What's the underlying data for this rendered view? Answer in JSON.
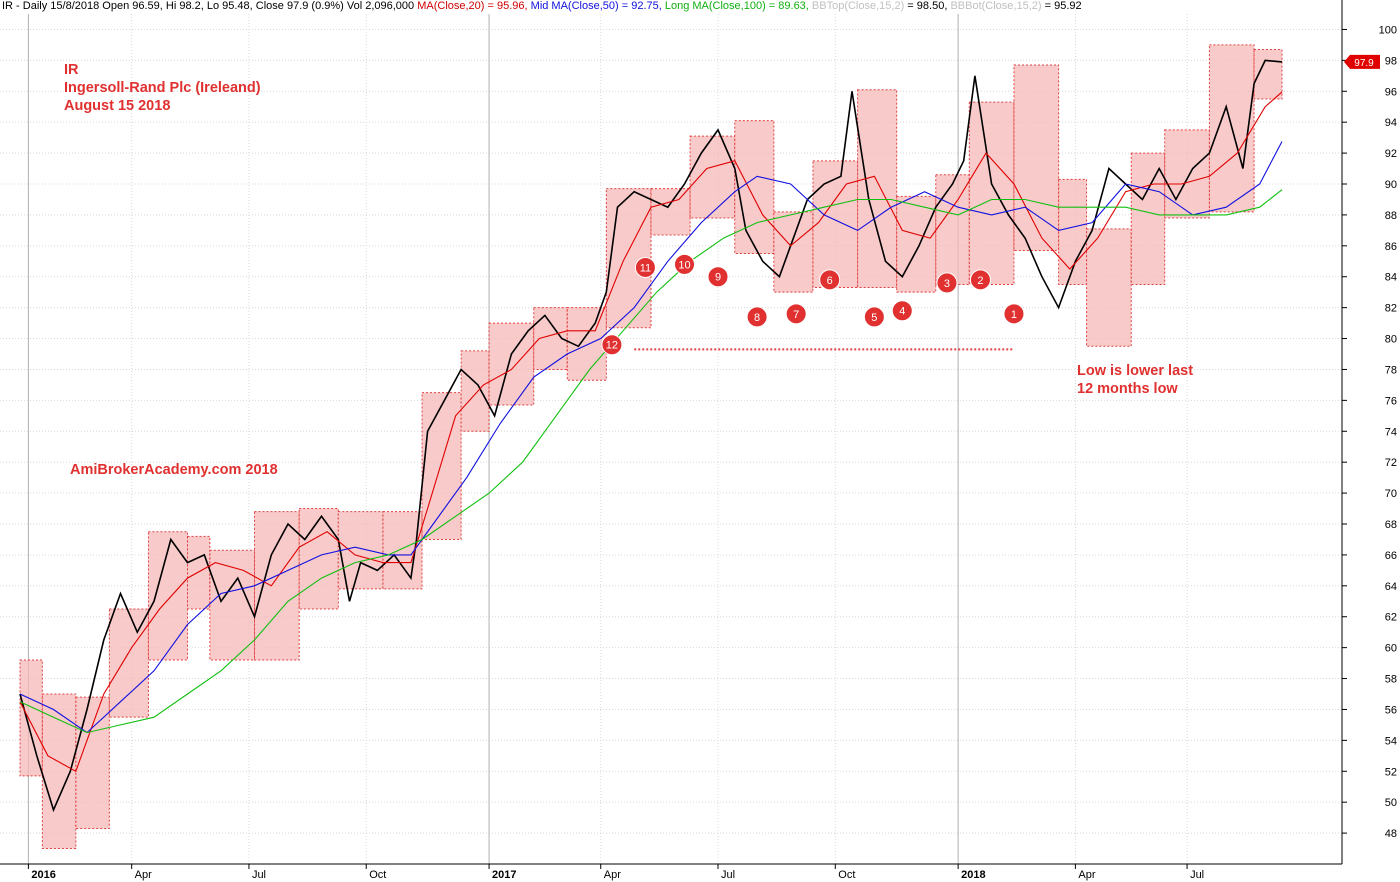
{
  "header": {
    "prefix": "IR - Daily 15/8/2018 Open 96.59, Hi 98.2, Lo 95.48, Close 97.9 (0.9%) Vol 2,096,000 ",
    "ma20": "MA(Close,20) = 95.96,",
    "ma50": " Mid MA(Close,50) = 92.75,",
    "ma100": " Long MA(Close,100) = 89.63,",
    "bbtop_label": " BBTop(Close,15,2)",
    "bbtop_value": " = 98.50, ",
    "bbbot_label": "BBBot(Close,15,2)",
    "bbbot_value": " = 95.92"
  },
  "annotations": {
    "symbol": "IR",
    "company": "Ingersoll-Rand Plc (Ireleand)",
    "date": "August 15 2018",
    "watermark": "AmiBrokerAcademy.com  2018",
    "low_note_line1": "Low is lower last",
    "low_note_line2": "12 months low"
  },
  "chart_data": {
    "type": "line",
    "title": "IR - Daily 15/8/2018",
    "x_tick_labels": [
      "2016",
      "Apr",
      "Jul",
      "Oct",
      "2017",
      "Apr",
      "Jul",
      "Oct",
      "2018",
      "Apr",
      "Jul"
    ],
    "y_range": [
      46,
      101
    ],
    "y_ticks": [
      48,
      50,
      52,
      54,
      56,
      58,
      60,
      62,
      64,
      66,
      68,
      70,
      72,
      74,
      76,
      78,
      80,
      82,
      84,
      86,
      88,
      90,
      92,
      94,
      96,
      98,
      100
    ],
    "last_price_label": "97.9",
    "grid": true,
    "series": [
      {
        "name": "Close",
        "color": "#000000",
        "points": [
          [
            0,
            57
          ],
          [
            0.3,
            53
          ],
          [
            0.6,
            49.5
          ],
          [
            0.9,
            52
          ],
          [
            1.2,
            56
          ],
          [
            1.5,
            60.5
          ],
          [
            1.8,
            63.5
          ],
          [
            2.1,
            61
          ],
          [
            2.4,
            63
          ],
          [
            2.7,
            67
          ],
          [
            3.0,
            65.5
          ],
          [
            3.3,
            66
          ],
          [
            3.6,
            63
          ],
          [
            3.9,
            64.5
          ],
          [
            4.2,
            62
          ],
          [
            4.5,
            66
          ],
          [
            4.8,
            68
          ],
          [
            5.1,
            67
          ],
          [
            5.4,
            68.5
          ],
          [
            5.7,
            67
          ],
          [
            5.9,
            63
          ],
          [
            6.1,
            65.5
          ],
          [
            6.4,
            65
          ],
          [
            6.7,
            66
          ],
          [
            7.0,
            64.5
          ],
          [
            7.1,
            67
          ],
          [
            7.3,
            74
          ],
          [
            7.6,
            76
          ],
          [
            7.9,
            78
          ],
          [
            8.2,
            77
          ],
          [
            8.5,
            75
          ],
          [
            8.8,
            79
          ],
          [
            9.1,
            80.5
          ],
          [
            9.4,
            81.5
          ],
          [
            9.7,
            80
          ],
          [
            10.0,
            79.5
          ],
          [
            10.3,
            81
          ],
          [
            10.5,
            83
          ],
          [
            10.7,
            88.5
          ],
          [
            11.0,
            89.5
          ],
          [
            11.3,
            89
          ],
          [
            11.6,
            88.5
          ],
          [
            11.9,
            90
          ],
          [
            12.2,
            92
          ],
          [
            12.5,
            93.5
          ],
          [
            12.8,
            91
          ],
          [
            13.0,
            87
          ],
          [
            13.3,
            85
          ],
          [
            13.6,
            84
          ],
          [
            13.8,
            86
          ],
          [
            14.1,
            89
          ],
          [
            14.4,
            90
          ],
          [
            14.7,
            90.5
          ],
          [
            14.9,
            96
          ],
          [
            15.2,
            89
          ],
          [
            15.5,
            85
          ],
          [
            15.8,
            84
          ],
          [
            16.1,
            86
          ],
          [
            16.4,
            88.5
          ],
          [
            16.7,
            90
          ],
          [
            16.9,
            91.5
          ],
          [
            17.1,
            97
          ],
          [
            17.4,
            90
          ],
          [
            17.7,
            88
          ],
          [
            18.0,
            86.5
          ],
          [
            18.3,
            84
          ],
          [
            18.6,
            82
          ],
          [
            18.9,
            85
          ],
          [
            19.2,
            87
          ],
          [
            19.5,
            91
          ],
          [
            19.8,
            90
          ],
          [
            20.1,
            89
          ],
          [
            20.4,
            91
          ],
          [
            20.7,
            89
          ],
          [
            21.0,
            91
          ],
          [
            21.3,
            92
          ],
          [
            21.6,
            95
          ],
          [
            21.9,
            91
          ],
          [
            22.1,
            96.5
          ],
          [
            22.3,
            98
          ],
          [
            22.6,
            97.9
          ]
        ]
      },
      {
        "name": "MA(Close,20)",
        "color": "#e00000",
        "points": [
          [
            0,
            56.5
          ],
          [
            0.5,
            53
          ],
          [
            1.0,
            52
          ],
          [
            1.5,
            57
          ],
          [
            2.0,
            60
          ],
          [
            2.5,
            62.5
          ],
          [
            3.0,
            64.5
          ],
          [
            3.5,
            65.5
          ],
          [
            4.0,
            65
          ],
          [
            4.5,
            64
          ],
          [
            5.0,
            66.5
          ],
          [
            5.5,
            67.5
          ],
          [
            6.0,
            66
          ],
          [
            6.5,
            65.5
          ],
          [
            7.0,
            65.5
          ],
          [
            7.3,
            69
          ],
          [
            7.8,
            75
          ],
          [
            8.3,
            77
          ],
          [
            8.8,
            78
          ],
          [
            9.3,
            80
          ],
          [
            9.8,
            80.5
          ],
          [
            10.3,
            80.5
          ],
          [
            10.8,
            85
          ],
          [
            11.3,
            88.5
          ],
          [
            11.8,
            89
          ],
          [
            12.3,
            91
          ],
          [
            12.8,
            91.5
          ],
          [
            13.3,
            88
          ],
          [
            13.8,
            86
          ],
          [
            14.3,
            87.5
          ],
          [
            14.8,
            90
          ],
          [
            15.3,
            90.5
          ],
          [
            15.8,
            87
          ],
          [
            16.3,
            86.5
          ],
          [
            16.8,
            89
          ],
          [
            17.3,
            92
          ],
          [
            17.8,
            90
          ],
          [
            18.3,
            86.5
          ],
          [
            18.8,
            84.5
          ],
          [
            19.3,
            86.5
          ],
          [
            19.8,
            89.5
          ],
          [
            20.3,
            90
          ],
          [
            20.8,
            90
          ],
          [
            21.3,
            90.5
          ],
          [
            21.8,
            92
          ],
          [
            22.3,
            95
          ],
          [
            22.6,
            95.96
          ]
        ]
      },
      {
        "name": "MA(Close,50)",
        "color": "#1010e0",
        "points": [
          [
            0,
            57
          ],
          [
            0.6,
            56
          ],
          [
            1.2,
            54.5
          ],
          [
            1.8,
            56.5
          ],
          [
            2.4,
            58.5
          ],
          [
            3.0,
            61.5
          ],
          [
            3.6,
            63.5
          ],
          [
            4.2,
            64
          ],
          [
            4.8,
            65
          ],
          [
            5.4,
            66
          ],
          [
            6.0,
            66.5
          ],
          [
            6.6,
            66
          ],
          [
            7.0,
            66
          ],
          [
            7.4,
            68
          ],
          [
            8.0,
            71
          ],
          [
            8.6,
            74.5
          ],
          [
            9.2,
            77.5
          ],
          [
            9.8,
            79
          ],
          [
            10.4,
            80
          ],
          [
            11.0,
            82
          ],
          [
            11.6,
            85
          ],
          [
            12.2,
            87.5
          ],
          [
            12.8,
            89.5
          ],
          [
            13.2,
            90.5
          ],
          [
            13.8,
            90
          ],
          [
            14.4,
            88
          ],
          [
            15.0,
            87
          ],
          [
            15.6,
            88.5
          ],
          [
            16.2,
            89.5
          ],
          [
            16.8,
            88.5
          ],
          [
            17.4,
            88
          ],
          [
            18.0,
            88.5
          ],
          [
            18.6,
            87
          ],
          [
            19.2,
            87.5
          ],
          [
            19.8,
            90
          ],
          [
            20.4,
            89.5
          ],
          [
            21.0,
            88
          ],
          [
            21.6,
            88.5
          ],
          [
            22.2,
            90
          ],
          [
            22.6,
            92.75
          ]
        ]
      },
      {
        "name": "MA(Close,100)",
        "color": "#10c010",
        "points": [
          [
            0,
            56.5
          ],
          [
            0.6,
            55.5
          ],
          [
            1.2,
            54.5
          ],
          [
            1.8,
            55
          ],
          [
            2.4,
            55.5
          ],
          [
            3.0,
            57
          ],
          [
            3.6,
            58.5
          ],
          [
            4.2,
            60.5
          ],
          [
            4.8,
            63
          ],
          [
            5.4,
            64.5
          ],
          [
            6.0,
            65.5
          ],
          [
            6.6,
            66
          ],
          [
            7.2,
            67
          ],
          [
            7.8,
            68.5
          ],
          [
            8.4,
            70
          ],
          [
            9.0,
            72
          ],
          [
            9.6,
            75
          ],
          [
            10.2,
            78
          ],
          [
            10.8,
            80.5
          ],
          [
            11.4,
            83
          ],
          [
            12.0,
            85
          ],
          [
            12.6,
            86.5
          ],
          [
            13.2,
            87.5
          ],
          [
            13.8,
            88
          ],
          [
            14.4,
            88.5
          ],
          [
            15.0,
            89
          ],
          [
            15.6,
            89
          ],
          [
            16.2,
            88.5
          ],
          [
            16.8,
            88
          ],
          [
            17.4,
            89
          ],
          [
            18.0,
            89
          ],
          [
            18.6,
            88.5
          ],
          [
            19.2,
            88.5
          ],
          [
            19.8,
            88.5
          ],
          [
            20.4,
            88
          ],
          [
            21.0,
            88
          ],
          [
            21.6,
            88
          ],
          [
            22.2,
            88.5
          ],
          [
            22.6,
            89.63
          ]
        ]
      }
    ],
    "monthly_boxes": [
      {
        "x0": 0,
        "x1": 0.4,
        "low": 51.7,
        "high": 59.2
      },
      {
        "x0": 0.4,
        "x1": 1.0,
        "low": 47.0,
        "high": 57.0
      },
      {
        "x0": 1.0,
        "x1": 1.6,
        "low": 48.3,
        "high": 56.8
      },
      {
        "x0": 1.6,
        "x1": 2.3,
        "low": 55.5,
        "high": 62.5
      },
      {
        "x0": 2.3,
        "x1": 3.0,
        "low": 59.2,
        "high": 67.5
      },
      {
        "x0": 3.0,
        "x1": 3.4,
        "low": 62.5,
        "high": 67.2
      },
      {
        "x0": 3.4,
        "x1": 4.2,
        "low": 59.2,
        "high": 66.3
      },
      {
        "x0": 4.2,
        "x1": 5.0,
        "low": 59.2,
        "high": 68.8
      },
      {
        "x0": 5.0,
        "x1": 5.7,
        "low": 62.5,
        "high": 69.0
      },
      {
        "x0": 5.7,
        "x1": 6.5,
        "low": 63.8,
        "high": 68.8
      },
      {
        "x0": 6.5,
        "x1": 7.2,
        "low": 63.8,
        "high": 68.8
      },
      {
        "x0": 7.2,
        "x1": 7.9,
        "low": 67.0,
        "high": 76.5
      },
      {
        "x0": 7.9,
        "x1": 8.4,
        "low": 74.0,
        "high": 79.2
      },
      {
        "x0": 8.4,
        "x1": 9.2,
        "low": 75.7,
        "high": 81.0
      },
      {
        "x0": 9.2,
        "x1": 9.8,
        "low": 78.0,
        "high": 82.0
      },
      {
        "x0": 9.8,
        "x1": 10.5,
        "low": 77.3,
        "high": 82.0
      },
      {
        "x0": 10.5,
        "x1": 11.3,
        "low": 80.7,
        "high": 89.7
      },
      {
        "x0": 11.3,
        "x1": 12.0,
        "low": 86.7,
        "high": 89.7
      },
      {
        "x0": 12.0,
        "x1": 12.8,
        "low": 87.8,
        "high": 93.1
      },
      {
        "x0": 12.8,
        "x1": 13.5,
        "low": 85.5,
        "high": 94.1
      },
      {
        "x0": 13.5,
        "x1": 14.2,
        "low": 83.0,
        "high": 88.2
      },
      {
        "x0": 14.2,
        "x1": 15.0,
        "low": 83.3,
        "high": 91.5
      },
      {
        "x0": 15.0,
        "x1": 15.7,
        "low": 83.3,
        "high": 96.1
      },
      {
        "x0": 15.7,
        "x1": 16.4,
        "low": 83.0,
        "high": 89.2
      },
      {
        "x0": 16.4,
        "x1": 17.0,
        "low": 83.5,
        "high": 90.6
      },
      {
        "x0": 17.0,
        "x1": 17.8,
        "low": 83.5,
        "high": 95.3
      },
      {
        "x0": 17.8,
        "x1": 18.6,
        "low": 85.7,
        "high": 97.7
      },
      {
        "x0": 18.6,
        "x1": 19.1,
        "low": 83.5,
        "high": 90.3
      },
      {
        "x0": 19.1,
        "x1": 19.9,
        "low": 79.5,
        "high": 87.1
      },
      {
        "x0": 19.9,
        "x1": 20.5,
        "low": 83.5,
        "high": 92.0
      },
      {
        "x0": 20.5,
        "x1": 21.3,
        "low": 87.8,
        "high": 93.5
      },
      {
        "x0": 21.3,
        "x1": 22.1,
        "low": 88.2,
        "high": 99.0
      },
      {
        "x0": 22.1,
        "x1": 22.6,
        "low": 95.5,
        "high": 98.7
      }
    ],
    "markers": [
      {
        "label": "12",
        "x": 10.6,
        "y": 79.6
      },
      {
        "label": "11",
        "x": 11.2,
        "y": 84.6
      },
      {
        "label": "10",
        "x": 11.9,
        "y": 84.8
      },
      {
        "label": "9",
        "x": 12.5,
        "y": 84.0
      },
      {
        "label": "8",
        "x": 13.2,
        "y": 81.4
      },
      {
        "label": "7",
        "x": 13.9,
        "y": 81.6
      },
      {
        "label": "6",
        "x": 14.5,
        "y": 83.8
      },
      {
        "label": "5",
        "x": 15.3,
        "y": 81.4
      },
      {
        "label": "4",
        "x": 15.8,
        "y": 81.8
      },
      {
        "label": "3",
        "x": 16.6,
        "y": 83.6
      },
      {
        "label": "2",
        "x": 17.2,
        "y": 83.8
      },
      {
        "label": "1",
        "x": 17.8,
        "y": 81.6
      }
    ],
    "support_line": {
      "x0": 11.0,
      "x1": 17.8,
      "y": 79.3
    }
  }
}
